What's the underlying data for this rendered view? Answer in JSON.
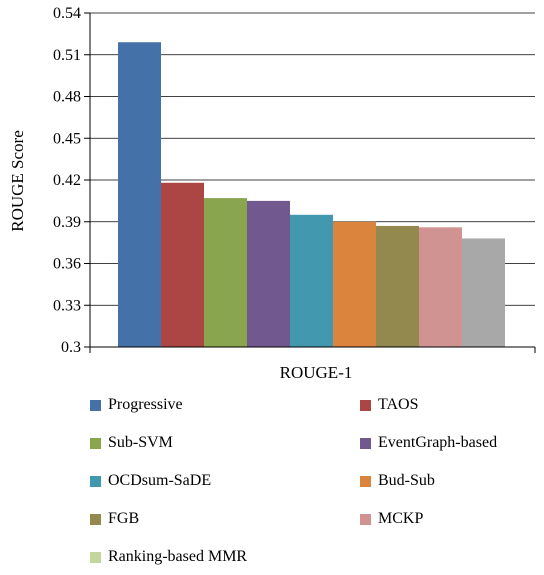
{
  "chart_data": {
    "type": "bar",
    "categories": [
      "ROUGE-1"
    ],
    "xlabel": "ROUGE-1",
    "ylabel": "ROUGE Score",
    "ylim": [
      0.3,
      0.54
    ],
    "yticks": [
      "0.3",
      "0.33",
      "0.36",
      "0.39",
      "0.42",
      "0.45",
      "0.48",
      "0.51",
      "0.54"
    ],
    "grid": true,
    "legend_position": "bottom",
    "series": [
      {
        "name": "Progressive",
        "values": [
          0.519
        ],
        "color": "#4472a8"
      },
      {
        "name": "TAOS",
        "values": [
          0.418
        ],
        "color": "#ab4644"
      },
      {
        "name": "Sub-SVM",
        "values": [
          0.407
        ],
        "color": "#89a54e"
      },
      {
        "name": "EventGraph-based",
        "values": [
          0.405
        ],
        "color": "#71588f"
      },
      {
        "name": "OCDsum-SaDE",
        "values": [
          0.395
        ],
        "color": "#4198af"
      },
      {
        "name": "Bud-Sub",
        "values": [
          0.39
        ],
        "color": "#db843d"
      },
      {
        "name": "FGB",
        "values": [
          0.387
        ],
        "color": "#93894e"
      },
      {
        "name": "MCKP",
        "values": [
          0.386
        ],
        "color": "#d09392"
      },
      {
        "name": "Ranking-based MMR",
        "values": [
          0.378
        ],
        "color": "#a8a8a8"
      }
    ],
    "legend_swatch_override": {
      "Ranking-based MMR": "#c3d69b"
    }
  }
}
